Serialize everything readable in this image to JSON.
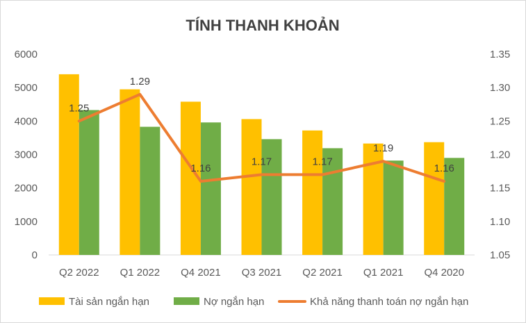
{
  "chart_data": {
    "type": "bar",
    "title": "TÍNH THANH KHOẢN",
    "categories": [
      "Q2 2022",
      "Q1 2022",
      "Q4 2021",
      "Q3 2021",
      "Q2 2021",
      "Q1 2021",
      "Q4 2020"
    ],
    "series": [
      {
        "name": "Tài sản ngắn hạn",
        "type": "bar",
        "axis": "left",
        "color": "#FFC000",
        "values": [
          5400,
          4950,
          4580,
          4060,
          3720,
          3330,
          3370
        ]
      },
      {
        "name": "Nợ ngắn hạn",
        "type": "bar",
        "axis": "left",
        "color": "#70AD47",
        "values": [
          4330,
          3830,
          3960,
          3460,
          3190,
          2820,
          2900
        ]
      },
      {
        "name": "Khả năng thanh toán nợ ngắn hạn",
        "type": "line",
        "axis": "right",
        "color": "#ED7D31",
        "values": [
          1.25,
          1.29,
          1.16,
          1.17,
          1.17,
          1.19,
          1.16
        ],
        "labels": [
          "1.25",
          "1.29",
          "1.16",
          "1.17",
          "1.17",
          "1.19",
          "1.16"
        ]
      }
    ],
    "y_left": {
      "min": 0,
      "max": 6000,
      "ticks": [
        "0",
        "1000",
        "2000",
        "3000",
        "4000",
        "5000",
        "6000"
      ]
    },
    "y_right": {
      "min": 1.05,
      "max": 1.35,
      "ticks": [
        "1.05",
        "1.10",
        "1.15",
        "1.20",
        "1.25",
        "1.30",
        "1.35"
      ]
    },
    "grid": false,
    "legend_position": "bottom"
  }
}
